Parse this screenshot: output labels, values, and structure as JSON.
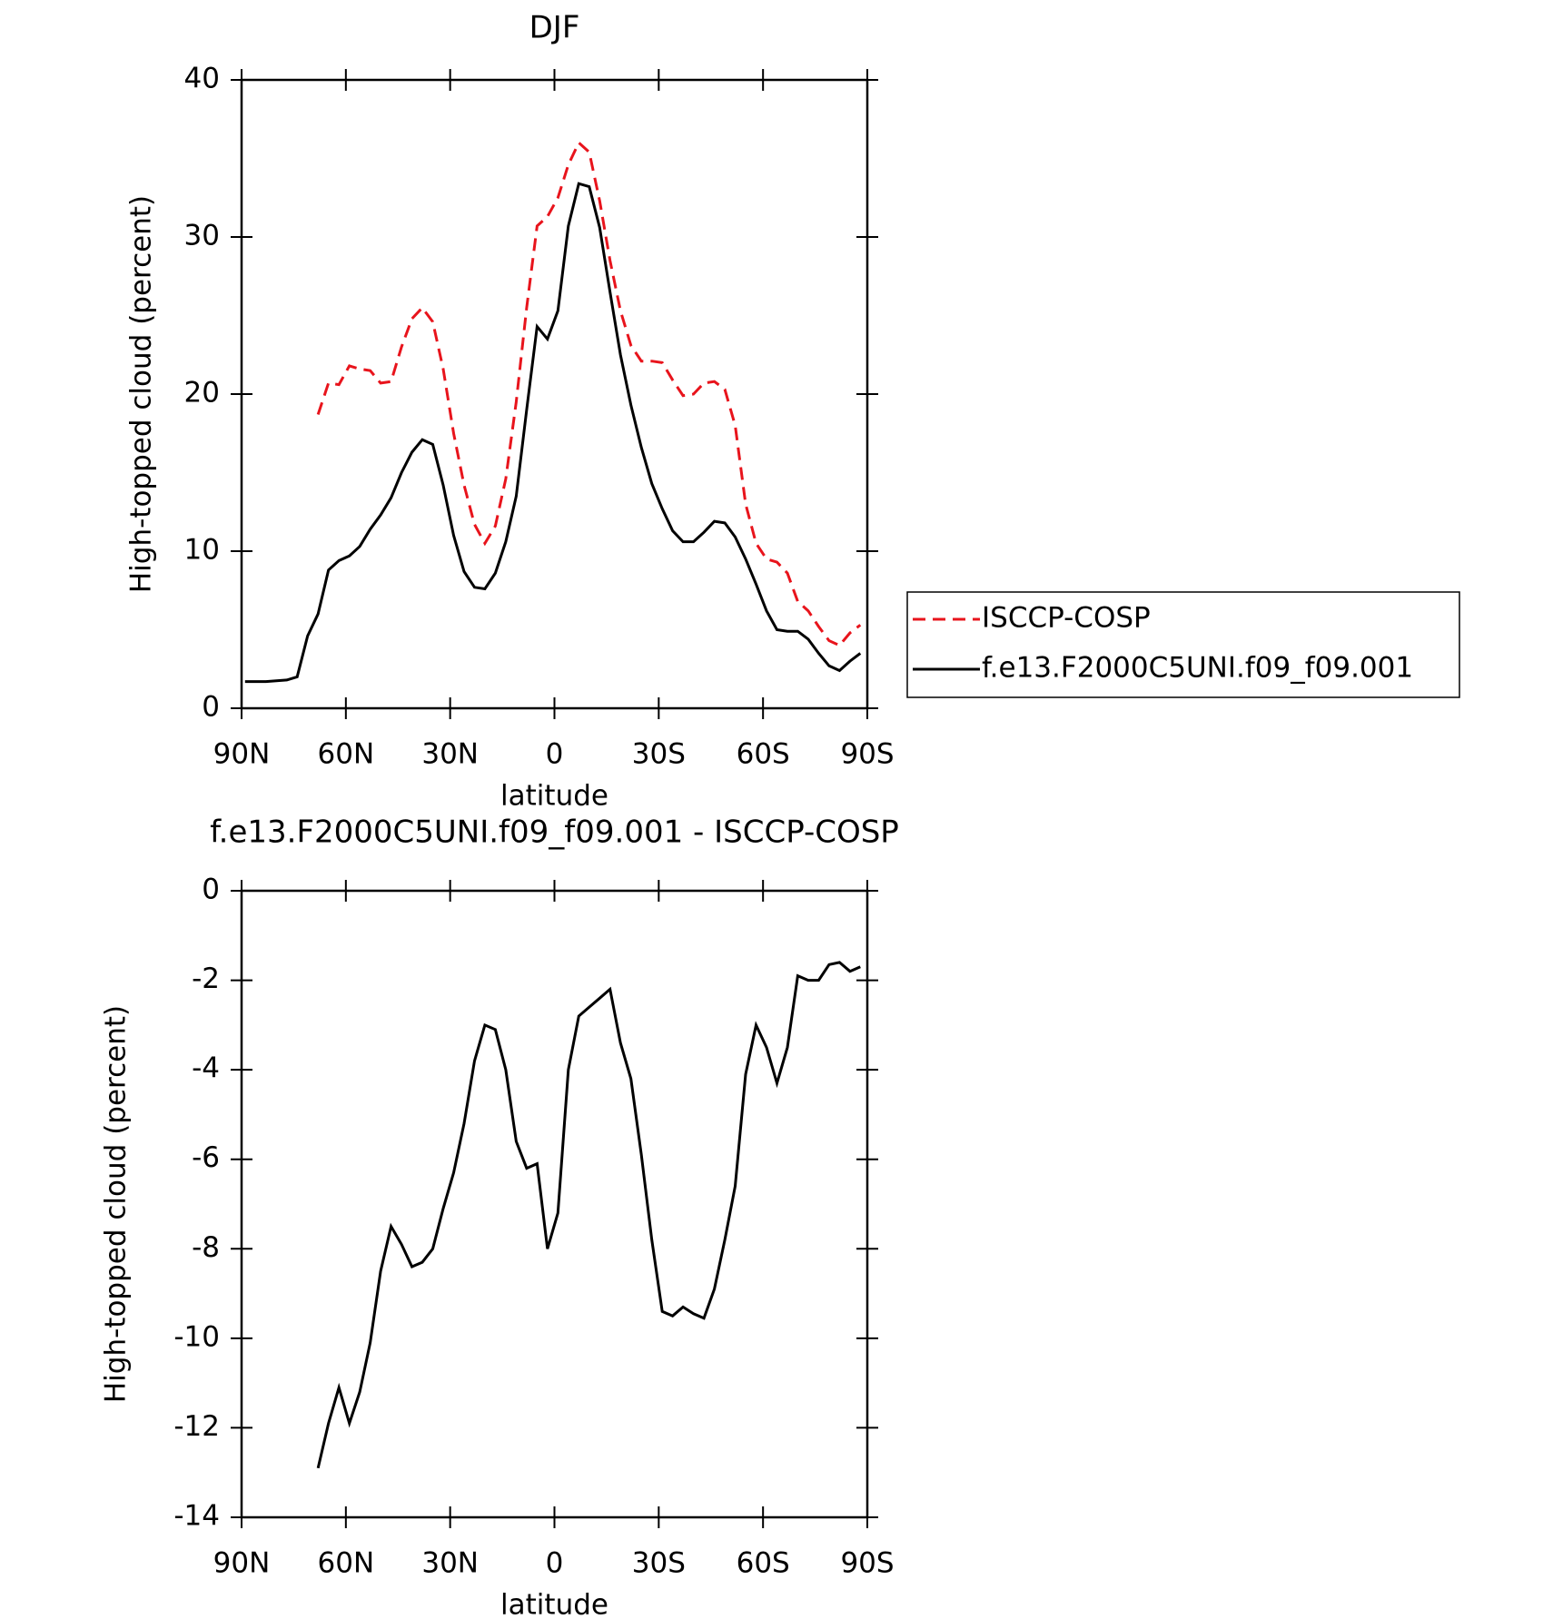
{
  "chart_data": [
    {
      "type": "line",
      "title": "DJF",
      "xlabel": "latitude",
      "ylabel": "High-topped cloud (percent)",
      "xlim": [
        90,
        -90
      ],
      "ylim": [
        0,
        40
      ],
      "xticks": [
        {
          "value": 90,
          "label": "90N"
        },
        {
          "value": 60,
          "label": "60N"
        },
        {
          "value": 30,
          "label": "30N"
        },
        0,
        {
          "value": -30,
          "label": "30S"
        },
        {
          "value": -60,
          "label": "60S"
        },
        {
          "value": -90,
          "label": "90S"
        }
      ],
      "yticks": [
        0,
        10,
        20,
        30,
        40
      ],
      "legend": "right",
      "x": [
        89,
        86,
        83,
        80,
        77,
        74,
        71,
        68,
        65,
        62,
        59,
        56,
        53,
        50,
        47,
        44,
        41,
        38,
        35,
        32,
        29,
        26,
        23,
        20,
        17,
        14,
        11,
        8,
        5,
        2,
        -1,
        -4,
        -7,
        -10,
        -13,
        -16,
        -19,
        -22,
        -25,
        -28,
        -31,
        -34,
        -37,
        -40,
        -43,
        -46,
        -49,
        -52,
        -55,
        -58,
        -61,
        -64,
        -67,
        -70,
        -73,
        -76,
        -79,
        -82,
        -85,
        -88
      ],
      "series": [
        {
          "name": "ISCCP-COSP",
          "color": "#e8141c",
          "dashed": true,
          "values": [
            null,
            null,
            null,
            null,
            null,
            null,
            null,
            18.7,
            20.7,
            20.6,
            21.8,
            21.6,
            21.5,
            20.7,
            20.8,
            23.0,
            24.8,
            25.5,
            24.6,
            21.6,
            17.5,
            14.2,
            11.7,
            10.5,
            11.6,
            14.6,
            19.5,
            25.5,
            30.7,
            31.3,
            32.5,
            34.6,
            36.0,
            35.4,
            32.3,
            28.5,
            25.3,
            23.1,
            22.1,
            22.1,
            22.0,
            20.9,
            19.9,
            20.0,
            20.7,
            20.8,
            20.3,
            18.0,
            13.0,
            10.5,
            9.5,
            9.3,
            8.6,
            6.8,
            6.2,
            5.2,
            4.3,
            4.0,
            4.8,
            5.3
          ]
        },
        {
          "name": "f.e13.F2000C5UNI.f09_f09.001",
          "color": "#000000",
          "dashed": false,
          "values": [
            1.7,
            1.7,
            1.7,
            1.75,
            1.8,
            2.0,
            4.6,
            6.0,
            8.8,
            9.4,
            9.7,
            10.3,
            11.4,
            12.3,
            13.4,
            15.0,
            16.3,
            17.1,
            16.8,
            14.2,
            11.0,
            8.7,
            7.7,
            7.6,
            8.6,
            10.6,
            13.5,
            19.0,
            24.3,
            23.5,
            25.3,
            30.7,
            33.4,
            33.2,
            30.6,
            26.5,
            22.5,
            19.3,
            16.6,
            14.3,
            12.7,
            11.3,
            10.6,
            10.6,
            11.2,
            11.9,
            11.8,
            10.9,
            9.5,
            7.9,
            6.2,
            5.0,
            4.9,
            4.9,
            4.4,
            3.5,
            2.7,
            2.4,
            3.0,
            3.5
          ]
        }
      ]
    },
    {
      "type": "line",
      "title": "f.e13.F2000C5UNI.f09_f09.001 - ISCCP-COSP",
      "xlabel": "latitude",
      "ylabel": "High-topped cloud (percent)",
      "xlim": [
        90,
        -90
      ],
      "ylim": [
        -14,
        0
      ],
      "xticks": [
        {
          "value": 90,
          "label": "90N"
        },
        {
          "value": 60,
          "label": "60N"
        },
        {
          "value": 30,
          "label": "30N"
        },
        0,
        {
          "value": -30,
          "label": "30S"
        },
        {
          "value": -60,
          "label": "60S"
        },
        {
          "value": -90,
          "label": "90S"
        }
      ],
      "yticks": [
        -14,
        -12,
        -10,
        -8,
        -6,
        -4,
        -2,
        0
      ],
      "x": [
        89,
        86,
        83,
        80,
        77,
        74,
        71,
        68,
        65,
        62,
        59,
        56,
        53,
        50,
        47,
        44,
        41,
        38,
        35,
        32,
        29,
        26,
        23,
        20,
        17,
        14,
        11,
        8,
        5,
        2,
        -1,
        -4,
        -7,
        -10,
        -13,
        -16,
        -19,
        -22,
        -25,
        -28,
        -31,
        -34,
        -37,
        -40,
        -43,
        -46,
        -49,
        -52,
        -55,
        -58,
        -61,
        -64,
        -67,
        -70,
        -73,
        -76,
        -79,
        -82,
        -85,
        -88
      ],
      "series": [
        {
          "color": "#000000",
          "dashed": false,
          "values": [
            null,
            null,
            null,
            null,
            null,
            null,
            null,
            -12.9,
            -11.9,
            -11.1,
            -11.9,
            -11.2,
            -10.1,
            -8.5,
            -7.5,
            -7.9,
            -8.4,
            -8.3,
            -8.0,
            -7.1,
            -6.3,
            -5.2,
            -3.8,
            -3.0,
            -3.1,
            -4.0,
            -5.6,
            -6.2,
            -6.1,
            -8.0,
            -7.2,
            -4.0,
            -2.8,
            -2.6,
            -2.4,
            -2.2,
            -3.4,
            -4.2,
            -5.9,
            -7.8,
            -9.4,
            -9.5,
            -9.3,
            -9.45,
            -9.55,
            -8.9,
            -7.8,
            -6.6,
            -4.1,
            -3.0,
            -3.5,
            -4.3,
            -3.5,
            -1.9,
            -2.0,
            -2.0,
            -1.65,
            -1.6,
            -1.8,
            -1.7
          ]
        }
      ]
    }
  ]
}
